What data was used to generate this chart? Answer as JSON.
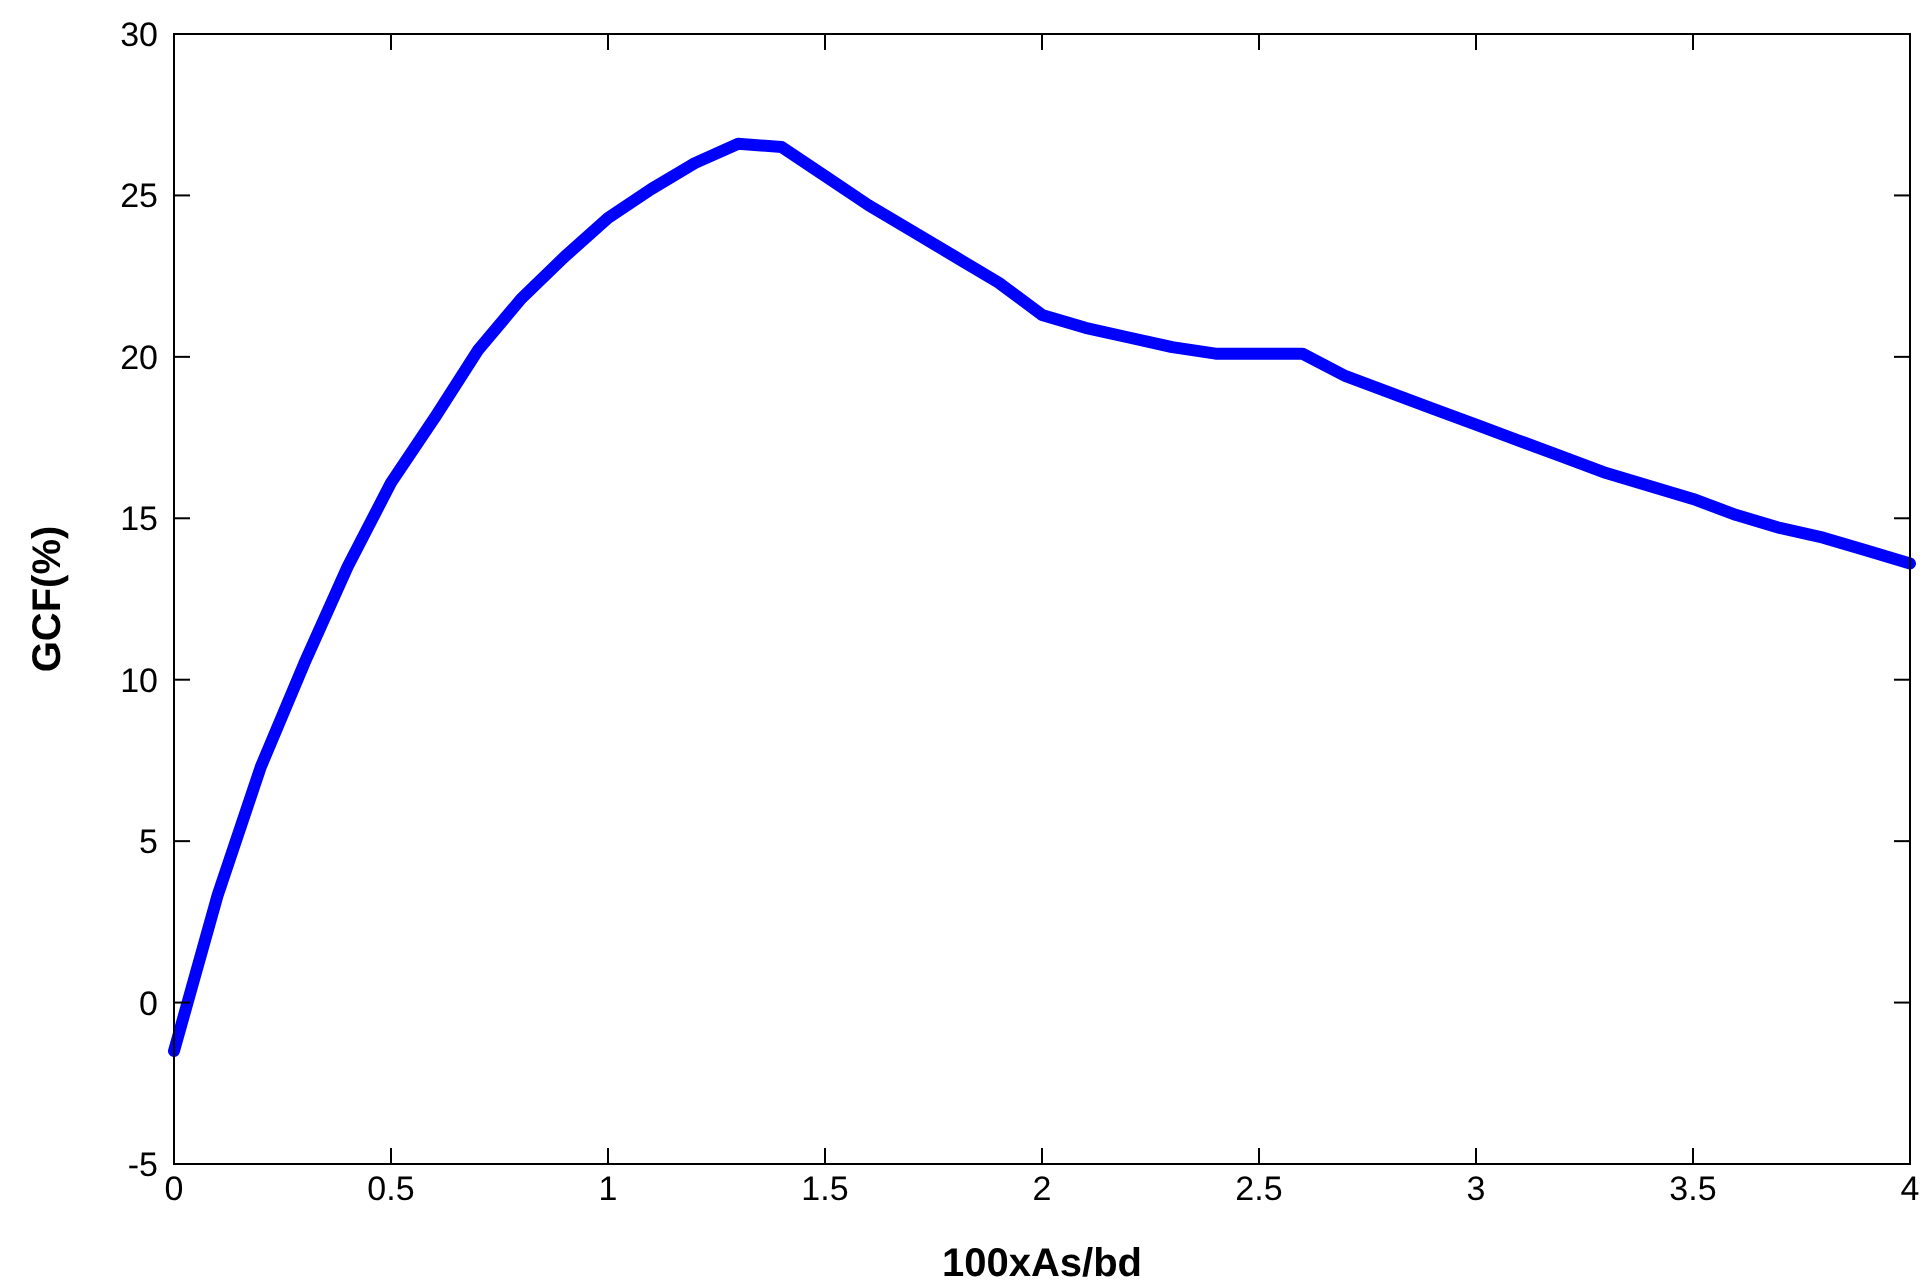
{
  "chart_data": {
    "type": "line",
    "xlabel": "100xAs/bd",
    "ylabel": "GCF(%)",
    "x": [
      0,
      0.1,
      0.2,
      0.3,
      0.4,
      0.5,
      0.6,
      0.7,
      0.8,
      0.9,
      1,
      1.1,
      1.2,
      1.3,
      1.4,
      1.5,
      1.6,
      1.7,
      1.8,
      1.9,
      2,
      2.1,
      2.2,
      2.3,
      2.4,
      2.5,
      2.6,
      2.7,
      2.8,
      2.9,
      3,
      3.1,
      3.2,
      3.3,
      3.4,
      3.5,
      3.6,
      3.7,
      3.8,
      3.9,
      4
    ],
    "series": [
      {
        "color": "#0000ff",
        "values": [
          -1.5,
          3.3,
          7.3,
          10.5,
          13.5,
          16.1,
          18.1,
          20.2,
          21.8,
          23.1,
          24.3,
          25.2,
          26,
          26.6,
          26.5,
          25.6,
          24.7,
          23.9,
          23.1,
          22.3,
          21.3,
          20.9,
          20.6,
          20.3,
          20.1,
          20.1,
          20.1,
          19.4,
          18.9,
          18.4,
          17.9,
          17.4,
          16.9,
          16.4,
          16,
          15.6,
          15.1,
          14.7,
          14.4,
          14,
          13.6
        ]
      }
    ],
    "xlim": [
      0,
      4
    ],
    "xticks": [
      0,
      0.5,
      1,
      1.5,
      2,
      2.5,
      3,
      3.5,
      4
    ],
    "ylim": [
      -5,
      30
    ],
    "yticks": [
      -5,
      0,
      5,
      10,
      15,
      20,
      25,
      30
    ],
    "grid": false,
    "marker": "none",
    "line_style": "solid"
  }
}
